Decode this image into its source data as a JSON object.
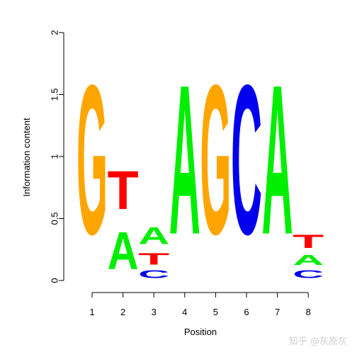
{
  "chart_data": {
    "type": "sequence-logo",
    "xlabel": "Position",
    "ylabel": "Information content",
    "ylim": [
      0,
      2
    ],
    "yticks": [
      "0",
      "0.5",
      "1",
      "1.5",
      "2"
    ],
    "xticks": [
      "1",
      "2",
      "3",
      "4",
      "5",
      "6",
      "7",
      "8"
    ],
    "colors": {
      "A": "#00ee00",
      "C": "#0000ee",
      "G": "#ffa500",
      "T": "#ff0000"
    },
    "positions": [
      {
        "pos": "1",
        "letters": [
          {
            "base": "G",
            "height": 1.93
          }
        ]
      },
      {
        "pos": "2",
        "letters": [
          {
            "base": "A",
            "height": 0.48
          },
          {
            "base": "T",
            "height": 0.49
          }
        ]
      },
      {
        "pos": "3",
        "letters": [
          {
            "base": "C",
            "height": 0.1
          },
          {
            "base": "T",
            "height": 0.15
          },
          {
            "base": "A",
            "height": 0.22
          }
        ]
      },
      {
        "pos": "4",
        "letters": [
          {
            "base": "A",
            "height": 1.93
          }
        ]
      },
      {
        "pos": "5",
        "letters": [
          {
            "base": "G",
            "height": 1.93
          }
        ]
      },
      {
        "pos": "6",
        "letters": [
          {
            "base": "C",
            "height": 1.93
          }
        ]
      },
      {
        "pos": "7",
        "letters": [
          {
            "base": "A",
            "height": 1.93
          }
        ]
      },
      {
        "pos": "8",
        "letters": [
          {
            "base": "C",
            "height": 0.1
          },
          {
            "base": "A",
            "height": 0.13
          },
          {
            "base": "T",
            "height": 0.17
          }
        ]
      }
    ]
  },
  "watermark": "知乎 @灰原灰"
}
